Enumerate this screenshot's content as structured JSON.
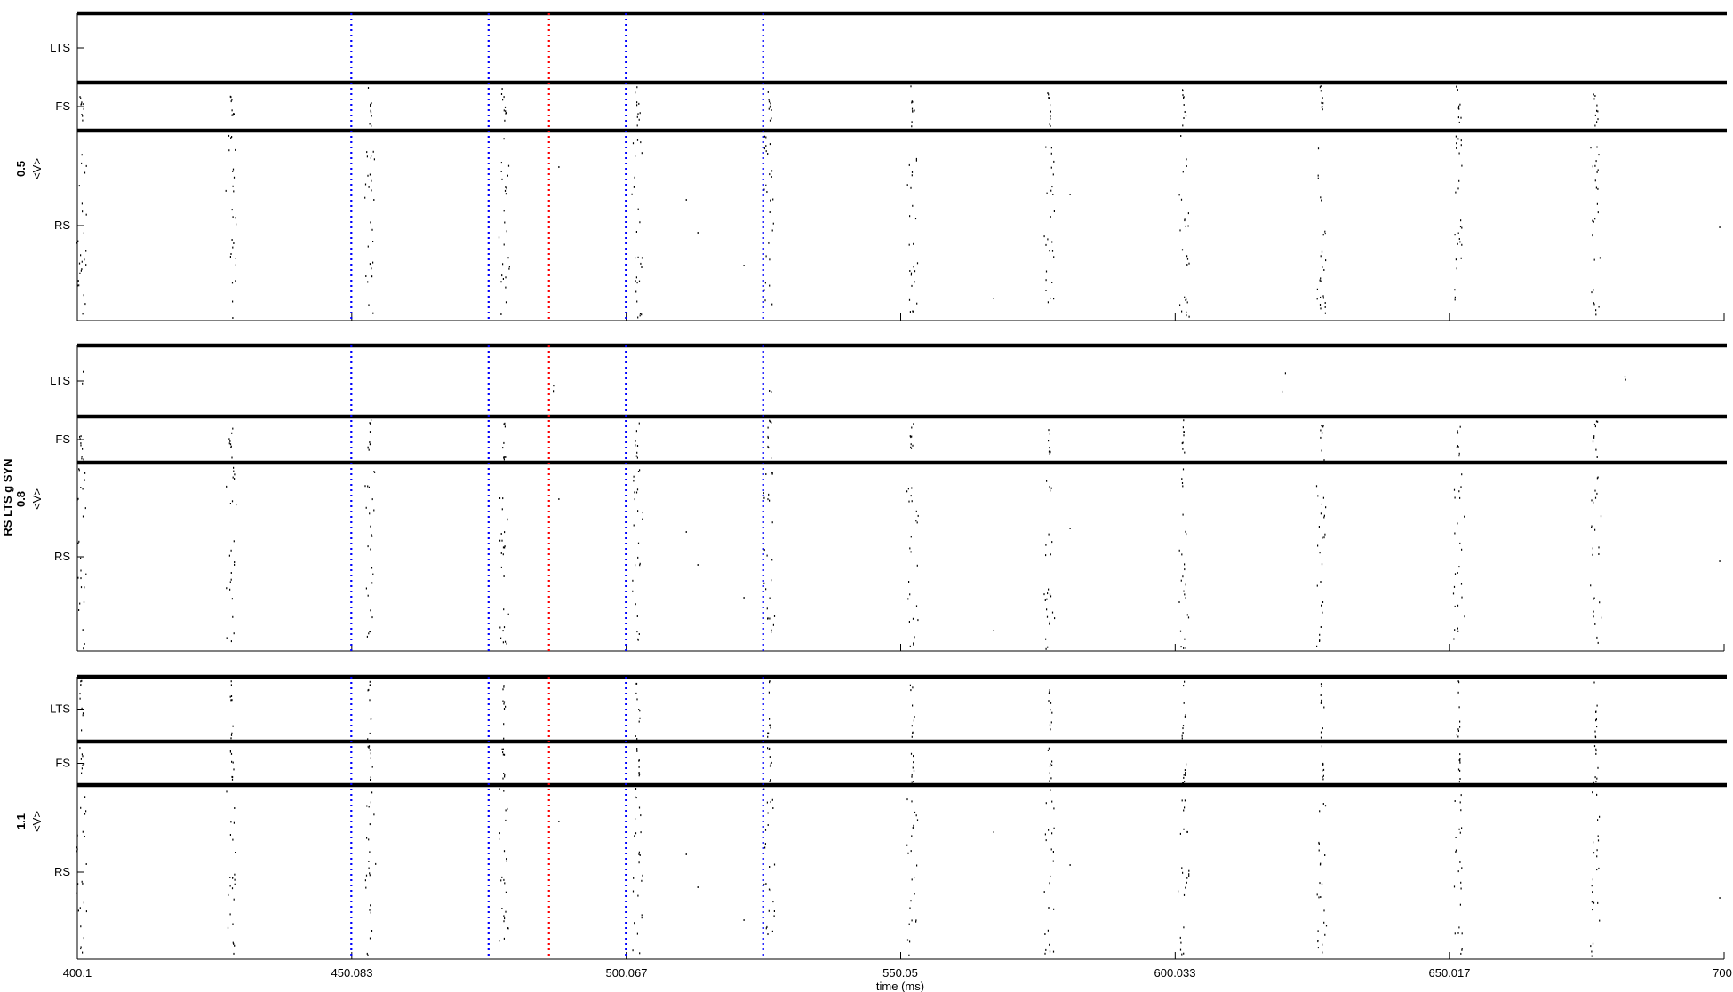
{
  "chart_data": {
    "type": "scatter",
    "kind": "spike-raster",
    "xlabel": "time (ms)",
    "xlim": [
      400.1,
      700
    ],
    "xticks": [
      "400.1",
      "450.083",
      "500.067",
      "550.05",
      "600.033",
      "650.017",
      "700"
    ],
    "group_axis_label": "RS LTS g SYN",
    "row_axis_label": "<V>",
    "populations": [
      "LTS",
      "FS",
      "RS"
    ],
    "panels": [
      {
        "param": "0.5",
        "lts_firing": false
      },
      {
        "param": "0.8",
        "lts_firing": "sparse"
      },
      {
        "param": "1.1",
        "lts_firing": true
      }
    ],
    "burst_times_ms": [
      400.9,
      428.2,
      453.4,
      477.8,
      502.1,
      526.1,
      552.2,
      577.2,
      601.6,
      626.8,
      651.7,
      676.6
    ],
    "stray_spike_times_ms": [
      487.8,
      511.0,
      513.1,
      521.5,
      567.0,
      580.9,
      699.2
    ],
    "markers": [
      {
        "time": 450.0,
        "color": "#0000ff",
        "style": "dotted"
      },
      {
        "time": 475.0,
        "color": "#0000ff",
        "style": "dotted"
      },
      {
        "time": 486.0,
        "color": "#ff0000",
        "style": "dotted"
      },
      {
        "time": 500.0,
        "color": "#0000ff",
        "style": "dotted"
      },
      {
        "time": 525.0,
        "color": "#0000ff",
        "style": "dotted"
      }
    ],
    "grid": false,
    "colors": {
      "spikes": "#000000",
      "separators": "#000000",
      "stimulus": "#0000ff",
      "event": "#ff0000"
    }
  }
}
